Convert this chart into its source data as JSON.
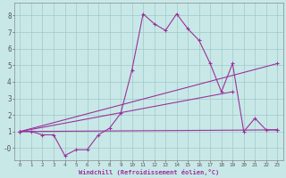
{
  "xlabel": "Windchill (Refroidissement éolien,°C)",
  "background_color": "#c8e8e8",
  "grid_color": "#a0c8c8",
  "line_color": "#993399",
  "xlim": [
    -0.5,
    23.5
  ],
  "ylim": [
    -0.75,
    8.75
  ],
  "xticks": [
    0,
    1,
    2,
    3,
    4,
    5,
    6,
    7,
    8,
    9,
    10,
    11,
    12,
    13,
    14,
    15,
    16,
    17,
    18,
    19,
    20,
    21,
    22,
    23
  ],
  "yticks": [
    0,
    1,
    2,
    3,
    4,
    5,
    6,
    7,
    8
  ],
  "ytick_labels": [
    "-0",
    "1",
    "2",
    "3",
    "4",
    "5",
    "6",
    "7",
    "8"
  ],
  "series": [
    {
      "x": [
        0,
        1,
        2,
        3,
        4,
        5,
        6,
        7,
        8,
        9,
        10,
        11,
        12,
        13,
        14,
        15,
        16,
        17,
        18,
        19,
        20,
        21,
        22,
        23
      ],
      "y": [
        1.0,
        1.0,
        0.8,
        0.8,
        -0.45,
        -0.1,
        -0.1,
        0.8,
        1.2,
        2.1,
        4.7,
        8.1,
        7.5,
        7.1,
        8.1,
        7.2,
        6.5,
        5.1,
        3.4,
        5.1,
        1.0,
        1.8,
        1.1,
        1.1
      ]
    },
    {
      "x": [
        0,
        23
      ],
      "y": [
        1.0,
        5.1
      ]
    },
    {
      "x": [
        0,
        19
      ],
      "y": [
        1.0,
        3.4
      ]
    },
    {
      "x": [
        0,
        23
      ],
      "y": [
        1.0,
        1.1
      ]
    }
  ]
}
